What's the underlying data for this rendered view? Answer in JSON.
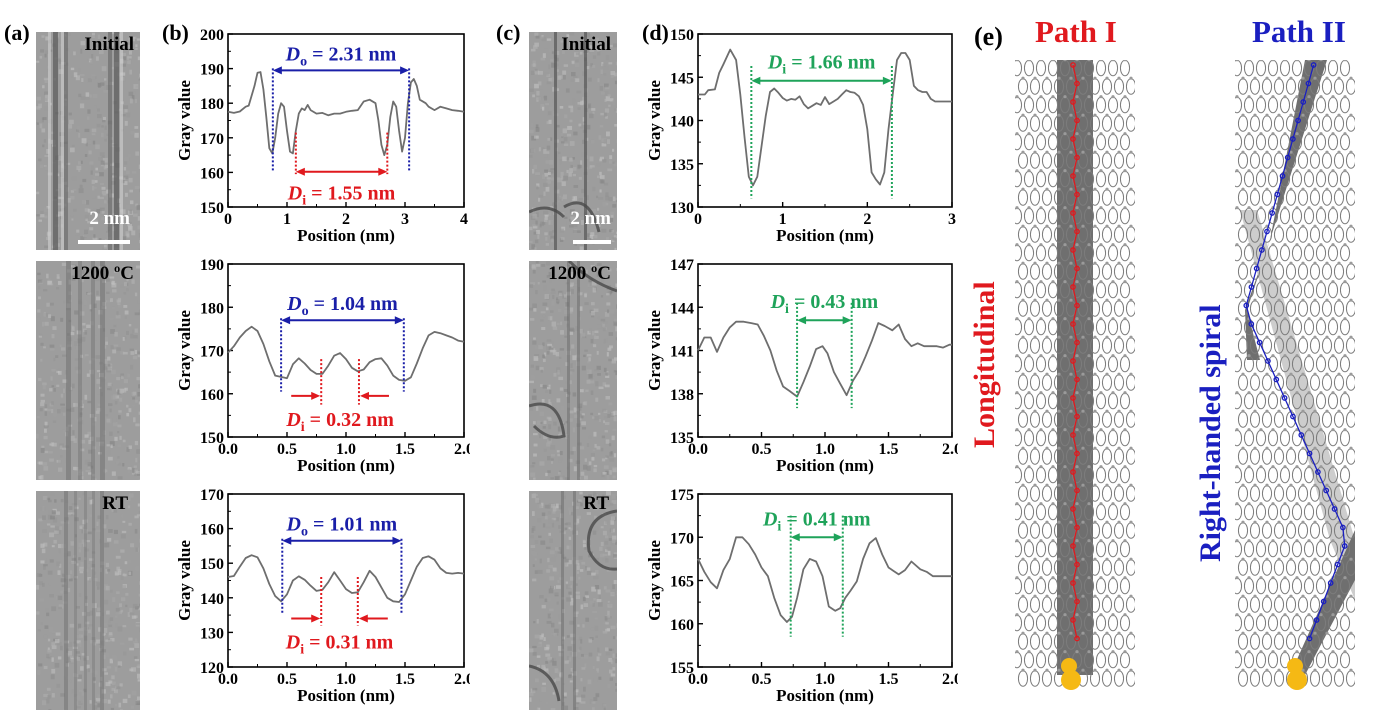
{
  "panels": {
    "a": {
      "label": "(a)",
      "images": [
        {
          "label": "Initial",
          "scale": "2 nm"
        },
        {
          "label": "1200 ºC"
        },
        {
          "label": "RT"
        }
      ]
    },
    "b": {
      "label": "(b)"
    },
    "c": {
      "label": "(c)",
      "images": [
        {
          "label": "Initial",
          "scale": "2 nm"
        },
        {
          "label": "1200 ºC"
        },
        {
          "label": "RT"
        }
      ]
    },
    "d": {
      "label": "(d)"
    },
    "e": {
      "label": "(e)",
      "path1": {
        "title": "Path I",
        "caption": "Longitudinal",
        "color": "#e0191e"
      },
      "path2": {
        "title": "Path II",
        "caption": "Right-handed spiral",
        "color": "#1a1fc0"
      }
    }
  },
  "colors": {
    "outer": "#1a1fa8",
    "inner_red": "#e0191e",
    "inner_green": "#1fa35a",
    "line": "#6e6e6e",
    "catalyst": "#f5b914"
  },
  "chart_data": [
    {
      "id": "b1",
      "type": "line",
      "title": "",
      "xlabel": "Position (nm)",
      "ylabel": "Gray value",
      "xlim": [
        0,
        4
      ],
      "ylim": [
        150,
        200
      ],
      "xticks": [
        0,
        1,
        2,
        3,
        4
      ],
      "xtick_labels": [
        "0",
        "1",
        "2",
        "3",
        "4"
      ],
      "yticks": [
        150,
        160,
        170,
        180,
        190,
        200
      ],
      "x": [
        0,
        0.1,
        0.2,
        0.3,
        0.35,
        0.45,
        0.5,
        0.55,
        0.6,
        0.65,
        0.7,
        0.75,
        0.8,
        0.85,
        0.9,
        0.95,
        1.0,
        1.05,
        1.1,
        1.15,
        1.2,
        1.25,
        1.3,
        1.35,
        1.4,
        1.5,
        1.6,
        1.7,
        1.8,
        1.9,
        2.0,
        2.1,
        2.2,
        2.3,
        2.4,
        2.5,
        2.55,
        2.6,
        2.65,
        2.7,
        2.75,
        2.8,
        2.85,
        2.9,
        2.95,
        3.0,
        3.05,
        3.1,
        3.15,
        3.2,
        3.25,
        3.35,
        3.4,
        3.5,
        3.6,
        3.7,
        3.8,
        3.9,
        4.0
      ],
      "series": [
        {
          "name": "profile",
          "values": [
            177.5,
            177.2,
            177.6,
            179,
            179.3,
            185,
            188.8,
            189,
            184,
            176,
            167,
            165.5,
            170,
            177,
            180,
            179,
            172,
            166,
            165.5,
            172,
            177,
            178.5,
            178,
            179.5,
            178,
            177,
            177.2,
            176.5,
            177,
            177,
            177.5,
            177.8,
            178,
            180.5,
            181,
            180,
            175,
            168,
            165,
            168,
            176,
            180.5,
            179,
            172,
            166,
            170,
            180,
            186,
            187,
            185,
            181,
            180,
            179,
            178,
            179,
            178.5,
            178,
            177.8,
            177.5
          ]
        }
      ],
      "annotations": [
        {
          "text_main": "D",
          "text_sub": "o",
          "text_rest": " = 2.31 nm",
          "color": "outer",
          "x1": 0.76,
          "x2": 3.07,
          "ylevel": 189.5,
          "vline_ylow": 160,
          "style": "double"
        },
        {
          "text_main": "D",
          "text_sub": "i",
          "text_rest": " = 1.55 nm",
          "color": "inner_red",
          "x1": 1.15,
          "x2": 2.7,
          "ylevel": 160.2,
          "vline_ylow": 159.5,
          "vline_yhigh": 171.5,
          "style": "double"
        }
      ]
    },
    {
      "id": "b2",
      "type": "line",
      "title": "",
      "xlabel": "Position (nm)",
      "ylabel": "Gray value",
      "xlim": [
        0,
        2
      ],
      "ylim": [
        150,
        190
      ],
      "xticks": [
        0,
        0.5,
        1.0,
        1.5,
        2.0
      ],
      "xtick_labels": [
        "0.0",
        "0.5",
        "1.0",
        "1.5",
        "2.0"
      ],
      "yticks": [
        150,
        160,
        170,
        180,
        190
      ],
      "x": [
        0,
        0.05,
        0.1,
        0.15,
        0.2,
        0.25,
        0.3,
        0.35,
        0.4,
        0.45,
        0.5,
        0.55,
        0.6,
        0.65,
        0.7,
        0.75,
        0.8,
        0.85,
        0.9,
        0.95,
        1.0,
        1.05,
        1.1,
        1.15,
        1.2,
        1.25,
        1.3,
        1.35,
        1.4,
        1.45,
        1.5,
        1.55,
        1.6,
        1.65,
        1.7,
        1.75,
        1.8,
        1.85,
        1.9,
        1.95,
        2.0
      ],
      "series": [
        {
          "name": "profile",
          "values": [
            169.5,
            171,
            173,
            174.5,
            175.5,
            174.5,
            171.5,
            167.5,
            164.2,
            163.9,
            163.6,
            166.8,
            168.2,
            167,
            165.5,
            164.6,
            164.6,
            166.5,
            168.8,
            169.4,
            168,
            166,
            165.2,
            165.6,
            167.3,
            168,
            168.2,
            166.5,
            164.2,
            163.2,
            163,
            163.8,
            167,
            170.5,
            173.5,
            174.3,
            174,
            173.5,
            173.0,
            172.3,
            172.0
          ]
        }
      ],
      "annotations": [
        {
          "text_main": "D",
          "text_sub": "o",
          "text_rest": " = 1.04 nm",
          "color": "outer",
          "x1": 0.45,
          "x2": 1.49,
          "ylevel": 177,
          "vline_ylow": 160.5,
          "style": "double"
        },
        {
          "text_main": "D",
          "text_sub": "i",
          "text_rest": " = 0.32 nm",
          "color": "inner_red",
          "x1": 0.79,
          "x2": 1.11,
          "ylevel": 159.5,
          "vline_ylow": 157.5,
          "vline_yhigh": 168,
          "style": "inward"
        }
      ]
    },
    {
      "id": "b3",
      "type": "line",
      "title": "",
      "xlabel": "Position (nm)",
      "ylabel": "Gray value",
      "xlim": [
        0,
        2
      ],
      "ylim": [
        120,
        170
      ],
      "xticks": [
        0,
        0.5,
        1.0,
        1.5,
        2.0
      ],
      "xtick_labels": [
        "0.0",
        "0.5",
        "1.0",
        "1.5",
        "2.0"
      ],
      "yticks": [
        120,
        130,
        140,
        150,
        160,
        170
      ],
      "x": [
        0,
        0.05,
        0.1,
        0.15,
        0.2,
        0.25,
        0.3,
        0.35,
        0.4,
        0.45,
        0.5,
        0.55,
        0.6,
        0.65,
        0.7,
        0.75,
        0.8,
        0.85,
        0.9,
        0.95,
        1.0,
        1.05,
        1.1,
        1.15,
        1.2,
        1.25,
        1.3,
        1.35,
        1.4,
        1.45,
        1.5,
        1.55,
        1.6,
        1.65,
        1.7,
        1.75,
        1.8,
        1.85,
        1.9,
        1.95,
        2.0
      ],
      "series": [
        {
          "name": "profile",
          "values": [
            146,
            146.3,
            149,
            151.5,
            152.3,
            151.7,
            148.5,
            144,
            140.5,
            139,
            141,
            145,
            146.2,
            145.2,
            143.5,
            142,
            142.3,
            144.5,
            147.4,
            145,
            142.5,
            141.4,
            141.6,
            144.5,
            147.8,
            146,
            143,
            140,
            139,
            138.8,
            141,
            145,
            149,
            151.5,
            152,
            151,
            148.5,
            147.2,
            147.0,
            147.2,
            147.0
          ]
        }
      ],
      "annotations": [
        {
          "text_main": "D",
          "text_sub": "o",
          "text_rest": " = 1.01 nm",
          "color": "outer",
          "x1": 0.46,
          "x2": 1.47,
          "ylevel": 156.5,
          "vline_ylow": 135.5,
          "style": "double"
        },
        {
          "text_main": "D",
          "text_sub": "i",
          "text_rest": " = 0.31 nm",
          "color": "inner_red",
          "x1": 0.79,
          "x2": 1.1,
          "ylevel": 134,
          "vline_ylow": 132,
          "vline_yhigh": 146,
          "style": "inward"
        }
      ]
    },
    {
      "id": "d1",
      "type": "line",
      "title": "",
      "xlabel": "Position (nm)",
      "ylabel": "Gray value",
      "xlim": [
        0,
        3
      ],
      "ylim": [
        130,
        150
      ],
      "xticks": [
        0,
        1,
        2,
        3
      ],
      "xtick_labels": [
        "0",
        "1",
        "2",
        "3"
      ],
      "yticks": [
        130,
        135,
        140,
        145,
        150
      ],
      "x": [
        0,
        0.08,
        0.12,
        0.2,
        0.25,
        0.3,
        0.38,
        0.45,
        0.5,
        0.55,
        0.6,
        0.65,
        0.7,
        0.75,
        0.8,
        0.85,
        0.9,
        0.95,
        1.0,
        1.05,
        1.1,
        1.15,
        1.2,
        1.25,
        1.3,
        1.35,
        1.4,
        1.45,
        1.5,
        1.55,
        1.6,
        1.65,
        1.7,
        1.75,
        1.8,
        1.85,
        1.9,
        1.95,
        2.0,
        2.05,
        2.1,
        2.15,
        2.2,
        2.25,
        2.3,
        2.35,
        2.4,
        2.45,
        2.5,
        2.55,
        2.6,
        2.65,
        2.7,
        2.75,
        2.8,
        2.85,
        2.9,
        2.95,
        3.0
      ],
      "series": [
        {
          "name": "profile",
          "values": [
            143,
            143,
            143.5,
            143.6,
            145.5,
            146.5,
            148.2,
            147,
            143,
            138,
            133.5,
            132.5,
            133.5,
            137,
            140.5,
            143.3,
            143.7,
            143.2,
            142.6,
            142.3,
            142.5,
            142.4,
            142.8,
            141.9,
            141.4,
            141.7,
            142,
            141.8,
            142.7,
            141.9,
            142.2,
            142.5,
            143,
            143.5,
            143.3,
            143.2,
            142.8,
            141.8,
            139,
            134,
            133.2,
            132.6,
            134,
            139,
            143,
            147,
            147.8,
            147.8,
            147,
            144,
            143.5,
            143.3,
            143.3,
            142.5,
            142.2,
            142.2,
            142.2,
            142.2,
            142.2
          ]
        }
      ],
      "annotations": [
        {
          "text_main": "D",
          "text_sub": "i",
          "text_rest": " = 1.66 nm",
          "color": "inner_green",
          "x1": 0.63,
          "x2": 2.29,
          "ylevel": 144.6,
          "vline_ylow": 131,
          "vline_yhigh": 146.3,
          "style": "double"
        }
      ]
    },
    {
      "id": "d2",
      "type": "line",
      "title": "",
      "xlabel": "Position (nm)",
      "ylabel": "Gray value",
      "xlim": [
        0,
        2
      ],
      "ylim": [
        135,
        147
      ],
      "xticks": [
        0,
        0.5,
        1.0,
        1.5,
        2.0
      ],
      "xtick_labels": [
        "0.0",
        "0.5",
        "1.0",
        "1.5",
        "2.0"
      ],
      "yticks": [
        135,
        138,
        141,
        144,
        147
      ],
      "x": [
        0,
        0.05,
        0.1,
        0.15,
        0.2,
        0.25,
        0.3,
        0.36,
        0.42,
        0.47,
        0.52,
        0.57,
        0.62,
        0.67,
        0.72,
        0.78,
        0.83,
        0.88,
        0.93,
        0.98,
        1.02,
        1.07,
        1.12,
        1.17,
        1.22,
        1.27,
        1.32,
        1.37,
        1.42,
        1.47,
        1.53,
        1.58,
        1.63,
        1.68,
        1.73,
        1.78,
        1.83,
        1.88,
        1.93,
        1.98,
        2.0
      ],
      "series": [
        {
          "name": "profile",
          "values": [
            141,
            141.9,
            141.9,
            140.9,
            141.9,
            142.6,
            143.0,
            143.0,
            142.9,
            142.8,
            142.0,
            141.0,
            139.6,
            138.5,
            138.2,
            137.8,
            138.8,
            139.9,
            141.1,
            141.3,
            140.8,
            139.5,
            138.7,
            137.9,
            138.9,
            139.6,
            140.6,
            141.7,
            142.9,
            142.7,
            142.4,
            142.8,
            141.8,
            141.3,
            141.5,
            141.3,
            141.3,
            141.3,
            141.2,
            141.4,
            141.4
          ]
        }
      ],
      "annotations": [
        {
          "text_main": "D",
          "text_sub": "i",
          "text_rest": " = 0.43 nm",
          "color": "inner_green",
          "x1": 0.78,
          "x2": 1.21,
          "ylevel": 143.1,
          "vline_ylow": 137,
          "vline_yhigh": 144.3,
          "style": "double"
        }
      ]
    },
    {
      "id": "d3",
      "type": "line",
      "title": "",
      "xlabel": "Position (nm)",
      "ylabel": "Gray value",
      "xlim": [
        0,
        2
      ],
      "ylim": [
        155,
        175
      ],
      "xticks": [
        0,
        0.5,
        1.0,
        1.5,
        2.0
      ],
      "xtick_labels": [
        "0.0",
        "0.5",
        "1.0",
        "1.5",
        "2.0"
      ],
      "yticks": [
        155,
        160,
        165,
        170,
        175
      ],
      "x": [
        0,
        0.05,
        0.1,
        0.15,
        0.2,
        0.25,
        0.3,
        0.35,
        0.4,
        0.45,
        0.5,
        0.55,
        0.6,
        0.65,
        0.7,
        0.74,
        0.78,
        0.83,
        0.88,
        0.93,
        0.98,
        1.03,
        1.08,
        1.12,
        1.16,
        1.2,
        1.25,
        1.3,
        1.35,
        1.4,
        1.45,
        1.5,
        1.54,
        1.58,
        1.63,
        1.68,
        1.75,
        1.8,
        1.85,
        1.9,
        1.95,
        2.0
      ],
      "series": [
        {
          "name": "profile",
          "values": [
            167.5,
            166,
            164.8,
            164.1,
            166.2,
            167.5,
            170,
            170,
            169.2,
            168,
            166.5,
            165.5,
            163,
            161,
            160.2,
            160.8,
            163,
            166.3,
            167.5,
            167.2,
            165.5,
            162,
            161.5,
            161.8,
            163,
            163.8,
            164.9,
            167.5,
            169.3,
            169.9,
            168,
            166.5,
            166.1,
            165.7,
            166.2,
            167.2,
            166.3,
            166,
            165.5,
            165.5,
            165.5,
            165.5
          ]
        }
      ],
      "annotations": [
        {
          "text_main": "D",
          "text_sub": "i",
          "text_rest": " = 0.41 nm",
          "color": "inner_green",
          "x1": 0.73,
          "x2": 1.14,
          "ylevel": 170.0,
          "vline_ylow": 158.5,
          "vline_yhigh": 172.5,
          "style": "double"
        }
      ]
    }
  ]
}
